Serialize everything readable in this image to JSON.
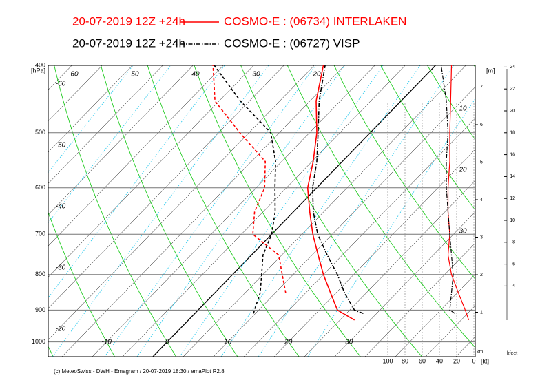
{
  "chart_data": {
    "type": "emagram",
    "series": [
      {
        "name": "20-07-2019  12Z +24h",
        "station": "COSMO-E : (06734)  INTERLAKEN",
        "color": "#ff0000",
        "dash": "solid",
        "pressure": [
          930,
          900,
          850,
          800,
          750,
          700,
          650,
          600,
          550,
          500,
          450,
          400
        ],
        "temperature": [
          27.4,
          23.0,
          19.1,
          15.0,
          11.0,
          6.8,
          2.7,
          -1.5,
          -4.8,
          -8.8,
          -14.0,
          -18.5
        ],
        "dewpoint": [
          null,
          null,
          11.7,
          8.2,
          4.5,
          -3.1,
          -6.4,
          -8.6,
          -12.7,
          -21.5,
          -30.7,
          -36.7
        ],
        "wind_speed": [
          6,
          10,
          18,
          26,
          30,
          28,
          30,
          30,
          28,
          28,
          27,
          26
        ]
      },
      {
        "name": "20-07-2019  12Z +24h",
        "station": "COSMO-E : (06727)  VISP",
        "color": "#000000",
        "dash": "dashdot",
        "pressure": [
          910,
          900,
          850,
          800,
          750,
          700,
          650,
          600,
          550,
          500,
          450,
          400
        ],
        "temperature": [
          27.8,
          25.8,
          21.4,
          17.3,
          12.5,
          7.6,
          3.3,
          -0.7,
          -4.2,
          -8.6,
          -13.5,
          -18.2
        ],
        "dewpoint": [
          9.7,
          9.3,
          7.5,
          4.8,
          1.9,
          0,
          -3.0,
          -6.9,
          -11.0,
          -16.4,
          -26.5,
          -36.5
        ],
        "wind_speed": [
          22,
          28,
          26,
          24,
          26,
          28,
          30,
          32,
          32,
          30,
          32,
          38
        ]
      }
    ],
    "ylim": [
      1050,
      400
    ],
    "yscale": "log",
    "yticks": [
      400,
      500,
      600,
      700,
      800,
      900,
      1000
    ],
    "y_unit": "[hPa]",
    "xticks": [
      -10,
      0,
      10,
      20,
      30
    ],
    "top_xticks": [
      -60,
      -50,
      -40,
      -30,
      -20
    ],
    "adiabat_labels": [
      -60,
      -50,
      -40,
      -30,
      -20
    ],
    "mixing_labels": [
      10,
      20,
      30
    ],
    "km_ticks": [
      1,
      2,
      3,
      4,
      5,
      6,
      7
    ],
    "km_label": "[m]",
    "km_unit": "km",
    "kfeet_ticks": [
      4,
      6,
      8,
      10,
      12,
      14,
      16,
      18,
      20,
      22,
      24
    ],
    "kfeet_unit": "kfeet",
    "wind_ticks": [
      100,
      80,
      60,
      40,
      20,
      0
    ],
    "wind_unit": "[kt]"
  },
  "footer": "(c) MeteoSwiss - DWH - Emagram / 20-07-2019  18:30 / emaPlot R2.8"
}
